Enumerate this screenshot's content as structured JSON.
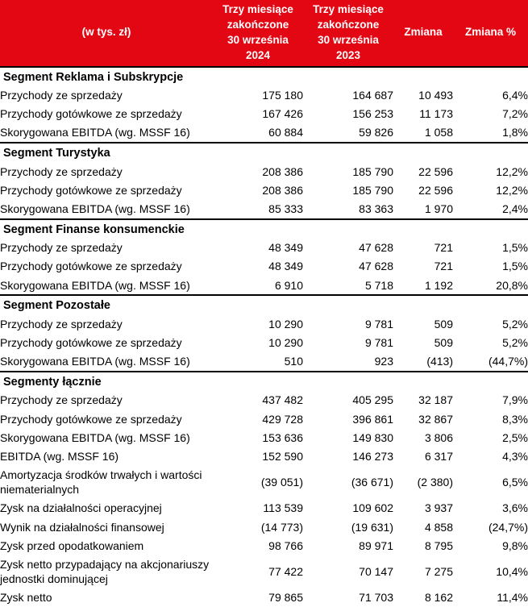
{
  "colors": {
    "header_bg": "#e30613",
    "header_text": "#ffffff",
    "body_text": "#000000",
    "section_border": "#000000"
  },
  "table": {
    "columns": {
      "label": "(w tys. zł)",
      "period_2024": "Trzy miesiące\nzakończone\n30 września 2024",
      "period_2023": "Trzy miesiące\nzakończone\n30 września 2023",
      "change": "Zmiana",
      "change_pct": "Zmiana %"
    },
    "sections": [
      {
        "title": "Segment Reklama i Subskrypcje",
        "rows": [
          {
            "label": "Przychody ze sprzedaży",
            "v2024": "175 180",
            "v2023": "164 687",
            "change": "10 493",
            "change_pct": "6,4%"
          },
          {
            "label": "Przychody gotówkowe ze sprzedaży",
            "v2024": "167 426",
            "v2023": "156 253",
            "change": "11 173",
            "change_pct": "7,2%"
          },
          {
            "label": "Skorygowana EBITDA (wg. MSSF 16)",
            "v2024": "60 884",
            "v2023": "59 826",
            "change": "1 058",
            "change_pct": "1,8%"
          }
        ]
      },
      {
        "title": "Segment Turystyka",
        "rows": [
          {
            "label": "Przychody ze sprzedaży",
            "v2024": "208 386",
            "v2023": "185 790",
            "change": "22 596",
            "change_pct": "12,2%"
          },
          {
            "label": "Przychody gotówkowe ze sprzedaży",
            "v2024": "208 386",
            "v2023": "185 790",
            "change": "22 596",
            "change_pct": "12,2%"
          },
          {
            "label": "Skorygowana EBITDA (wg. MSSF 16)",
            "v2024": "85 333",
            "v2023": "83 363",
            "change": "1 970",
            "change_pct": "2,4%"
          }
        ]
      },
      {
        "title": "Segment Finanse konsumenckie",
        "rows": [
          {
            "label": "Przychody ze sprzedaży",
            "v2024": "48 349",
            "v2023": "47 628",
            "change": "721",
            "change_pct": "1,5%"
          },
          {
            "label": "Przychody gotówkowe ze sprzedaży",
            "v2024": "48 349",
            "v2023": "47 628",
            "change": "721",
            "change_pct": "1,5%"
          },
          {
            "label": "Skorygowana EBITDA (wg. MSSF 16)",
            "v2024": "6 910",
            "v2023": "5 718",
            "change": "1 192",
            "change_pct": "20,8%"
          }
        ]
      },
      {
        "title": "Segment Pozostałe",
        "rows": [
          {
            "label": "Przychody ze sprzedaży",
            "v2024": "10 290",
            "v2023": "9 781",
            "change": "509",
            "change_pct": "5,2%"
          },
          {
            "label": "Przychody gotówkowe ze sprzedaży",
            "v2024": "10 290",
            "v2023": "9 781",
            "change": "509",
            "change_pct": "5,2%"
          },
          {
            "label": "Skorygowana EBITDA (wg. MSSF 16)",
            "v2024": "510",
            "v2023": "923",
            "change": "(413)",
            "change_pct": "(44,7%)"
          }
        ]
      },
      {
        "title": "Segmenty łącznie",
        "rows": [
          {
            "label": "Przychody ze sprzedaży",
            "v2024": "437 482",
            "v2023": "405 295",
            "change": "32 187",
            "change_pct": "7,9%"
          },
          {
            "label": "Przychody gotówkowe ze sprzedaży",
            "v2024": "429 728",
            "v2023": "396 861",
            "change": "32 867",
            "change_pct": "8,3%"
          },
          {
            "label": "Skorygowana EBITDA (wg. MSSF 16)",
            "v2024": "153 636",
            "v2023": "149 830",
            "change": "3 806",
            "change_pct": "2,5%"
          },
          {
            "label": "EBITDA (wg. MSSF 16)",
            "v2024": "152 590",
            "v2023": "146 273",
            "change": "6 317",
            "change_pct": "4,3%"
          },
          {
            "label": "Amortyzacja środków trwałych i wartości niematerialnych",
            "v2024": "(39 051)",
            "v2023": "(36 671)",
            "change": "(2 380)",
            "change_pct": "6,5%"
          },
          {
            "label": "Zysk na działalności operacyjnej",
            "v2024": "113 539",
            "v2023": "109 602",
            "change": "3 937",
            "change_pct": "3,6%"
          },
          {
            "label": "Wynik na działalności finansowej",
            "v2024": "(14 773)",
            "v2023": "(19 631)",
            "change": "4 858",
            "change_pct": "(24,7%)"
          },
          {
            "label": "Zysk przed opodatkowaniem",
            "v2024": "98 766",
            "v2023": "89 971",
            "change": "8 795",
            "change_pct": "9,8%"
          },
          {
            "label": "Zysk netto przypadający na akcjonariuszy jednostki dominującej",
            "v2024": "77 422",
            "v2023": "70 147",
            "change": "7 275",
            "change_pct": "10,4%"
          },
          {
            "label": "Zysk netto",
            "v2024": "79 865",
            "v2023": "71 703",
            "change": "8 162",
            "change_pct": "11,4%"
          }
        ]
      }
    ]
  }
}
